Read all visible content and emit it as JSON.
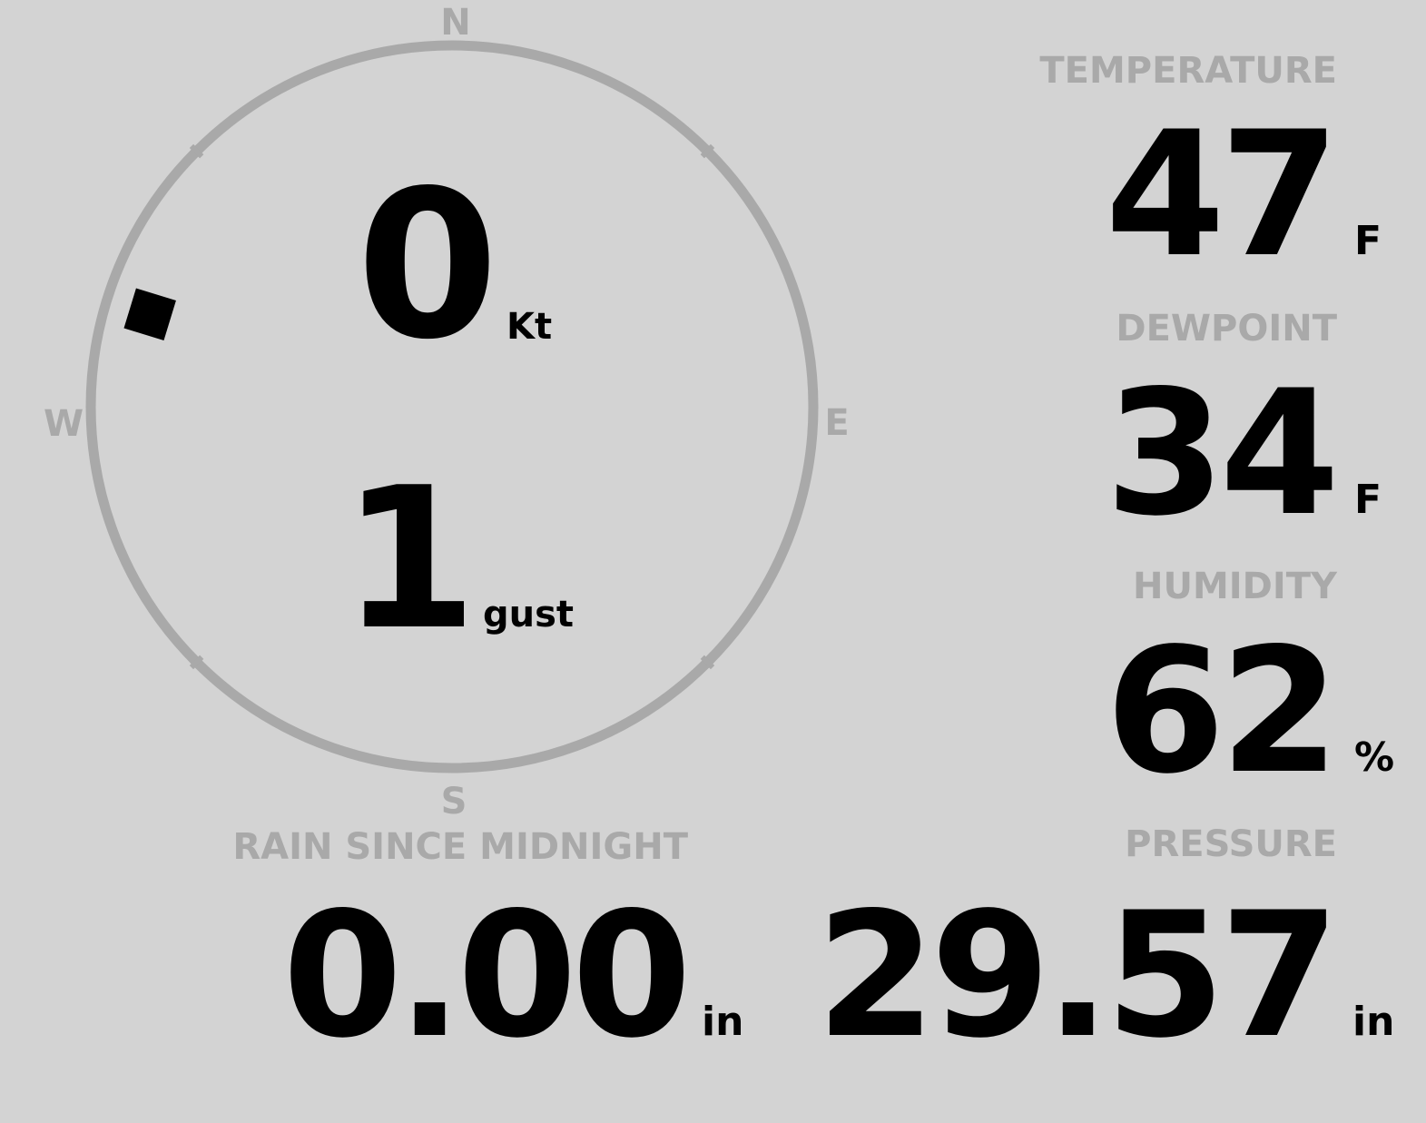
{
  "colors": {
    "background": "#d3d3d3",
    "label": "#a9a9a9",
    "value": "#000000",
    "ring": "#a9a9a9"
  },
  "wind": {
    "cardinals": {
      "n": "N",
      "e": "E",
      "s": "S",
      "w": "W"
    },
    "speed": "0",
    "speed_unit": "Kt",
    "gust": "1",
    "gust_unit": "gust",
    "direction_deg": 287
  },
  "temperature": {
    "label": "TEMPERATURE",
    "value": "47",
    "unit": "F"
  },
  "dewpoint": {
    "label": "DEWPOINT",
    "value": "34",
    "unit": "F"
  },
  "humidity": {
    "label": "HUMIDITY",
    "value": "62",
    "unit": "%"
  },
  "rain": {
    "label": "RAIN SINCE MIDNIGHT",
    "value": "0.00",
    "unit": "in"
  },
  "pressure": {
    "label": "PRESSURE",
    "value": "29.57",
    "unit": "in"
  }
}
